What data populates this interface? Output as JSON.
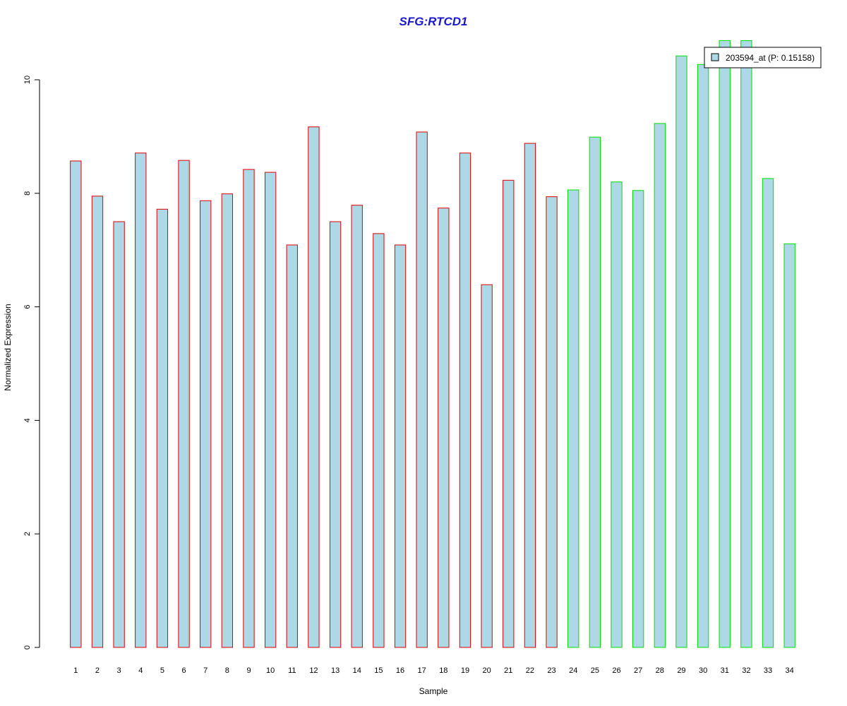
{
  "chart_data": {
    "type": "bar",
    "title": "SFG:RTCD1",
    "xlabel": "Sample",
    "ylabel": "Normalized Expression",
    "ylim": [
      0,
      10
    ],
    "yticks": [
      0,
      2,
      4,
      6,
      8,
      10
    ],
    "grid": false,
    "legend_position": "top-right",
    "categories": [
      "1",
      "2",
      "3",
      "4",
      "5",
      "6",
      "7",
      "8",
      "9",
      "10",
      "11",
      "12",
      "13",
      "14",
      "15",
      "16",
      "17",
      "18",
      "19",
      "20",
      "21",
      "22",
      "23",
      "24",
      "25",
      "26",
      "27",
      "28",
      "29",
      "30",
      "31",
      "32",
      "33",
      "34"
    ],
    "series": [
      {
        "name": "203594_at (P: 0.15158)",
        "fill_color": "#add8e6",
        "values": [
          8.57,
          7.95,
          7.5,
          8.71,
          7.72,
          8.58,
          7.87,
          7.99,
          8.42,
          8.37,
          7.09,
          9.17,
          7.5,
          7.79,
          7.29,
          7.09,
          9.08,
          7.74,
          8.71,
          6.39,
          8.23,
          8.88,
          7.94,
          8.06,
          8.99,
          8.2,
          8.05,
          9.23,
          10.42,
          10.27,
          10.69,
          10.69,
          8.26,
          7.11
        ]
      }
    ],
    "border_colors": {
      "group_1": "#e00000",
      "group_2": "#00e000"
    },
    "group_1_count": 23
  }
}
